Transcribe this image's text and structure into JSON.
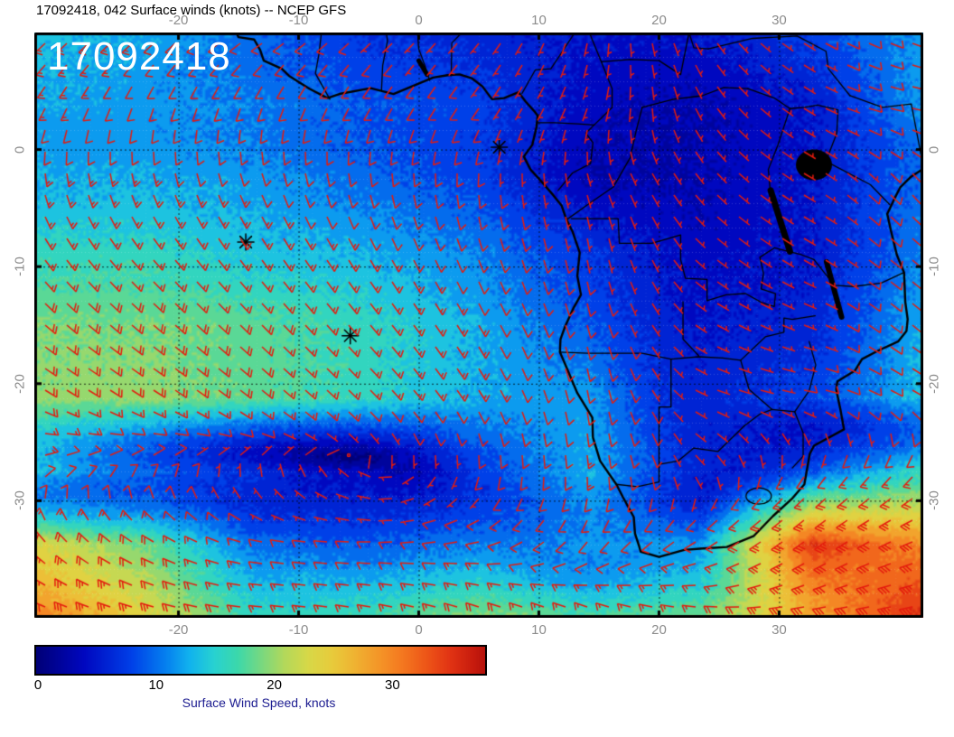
{
  "title": "17092418, 042 Surface winds (knots) -- NCEP GFS",
  "inset_label": "17092418",
  "colors": {
    "barb": "#e41b0e",
    "coast": "#000000",
    "frame": "#000000",
    "tick_label": "#8c8c8c",
    "title_text": "#000000",
    "caption_text": "#1c1c90",
    "inset_text": "#ffffff"
  },
  "chart_data": {
    "type": "heatmap",
    "title": "17092418, 042 Surface winds (knots) -- NCEP GFS",
    "model": "NCEP GFS",
    "run": "17092418",
    "forecast_hour": "042",
    "field": "surface wind speed (knots) with wind barbs over Africa and the South Atlantic",
    "lon_range": [
      -32,
      42
    ],
    "lat_range": [
      -40,
      10
    ],
    "lon_ticks": [
      -20,
      -10,
      0,
      10,
      20,
      30
    ],
    "lat_ticks": [
      0,
      -10,
      -20,
      -30
    ],
    "grid_on": true,
    "colorbar": {
      "min": 0,
      "max": 38,
      "ticks": [
        0,
        10,
        20,
        30
      ],
      "label": "Surface Wind Speed, knots"
    },
    "grid": {
      "lons": [
        -32,
        -22.75,
        -13.5,
        -4.25,
        5,
        14.25,
        23.5,
        32.75,
        42
      ],
      "lats": [
        10,
        3.75,
        -2.5,
        -8.75,
        -15,
        -21.25,
        -27.5,
        -33.75,
        -40
      ],
      "speed_knots": [
        [
          14,
          13,
          10,
          7,
          6,
          5,
          5,
          8,
          12
        ],
        [
          13,
          12,
          11,
          9,
          8,
          4,
          3,
          5,
          12
        ],
        [
          13,
          13,
          12,
          10,
          8,
          3,
          3,
          5,
          10
        ],
        [
          16,
          16,
          14,
          13,
          11,
          7,
          4,
          5,
          11
        ],
        [
          19,
          19,
          18,
          16,
          13,
          9,
          5,
          6,
          13
        ],
        [
          20,
          20,
          18,
          16,
          13,
          12,
          6,
          8,
          14
        ],
        [
          14,
          10,
          7,
          4,
          8,
          13,
          6,
          9,
          16
        ],
        [
          24,
          19,
          10,
          9,
          11,
          12,
          12,
          35,
          30
        ],
        [
          31,
          24,
          16,
          17,
          20,
          18,
          19,
          28,
          36
        ]
      ],
      "dir_from_deg": [
        [
          230,
          230,
          240,
          230,
          220,
          190,
          150,
          120,
          110
        ],
        [
          210,
          200,
          200,
          210,
          215,
          200,
          150,
          120,
          100
        ],
        [
          170,
          165,
          160,
          170,
          180,
          160,
          140,
          120,
          140
        ],
        [
          145,
          140,
          145,
          150,
          160,
          170,
          130,
          120,
          130
        ],
        [
          130,
          130,
          135,
          140,
          150,
          165,
          120,
          110,
          130
        ],
        [
          120,
          122,
          128,
          135,
          148,
          170,
          110,
          100,
          120
        ],
        [
          60,
          30,
          0,
          300,
          190,
          175,
          140,
          210,
          220
        ],
        [
          320,
          300,
          280,
          270,
          260,
          220,
          240,
          235,
          250
        ],
        [
          290,
          285,
          275,
          280,
          290,
          295,
          280,
          265,
          260
        ]
      ]
    },
    "markers": [
      {
        "lon": 6.7,
        "lat": 0.2
      },
      {
        "lon": -14.4,
        "lat": -7.9
      },
      {
        "lon": -5.7,
        "lat": -15.9
      }
    ],
    "colormap_stops": [
      [
        0,
        "#000078"
      ],
      [
        4,
        "#0008c0"
      ],
      [
        8,
        "#0040e8"
      ],
      [
        11,
        "#0682f0"
      ],
      [
        13,
        "#12b4ee"
      ],
      [
        15,
        "#28d2d2"
      ],
      [
        17,
        "#3cd8ac"
      ],
      [
        19,
        "#78d881"
      ],
      [
        21,
        "#b4d95b"
      ],
      [
        23,
        "#d8d848"
      ],
      [
        25,
        "#e8cc3c"
      ],
      [
        27,
        "#f0b232"
      ],
      [
        29,
        "#f49628"
      ],
      [
        31,
        "#f47820"
      ],
      [
        33,
        "#ee5618"
      ],
      [
        35,
        "#e23414"
      ],
      [
        37,
        "#c81c0e"
      ],
      [
        39,
        "#a00808"
      ],
      [
        42,
        "#700000"
      ]
    ]
  }
}
